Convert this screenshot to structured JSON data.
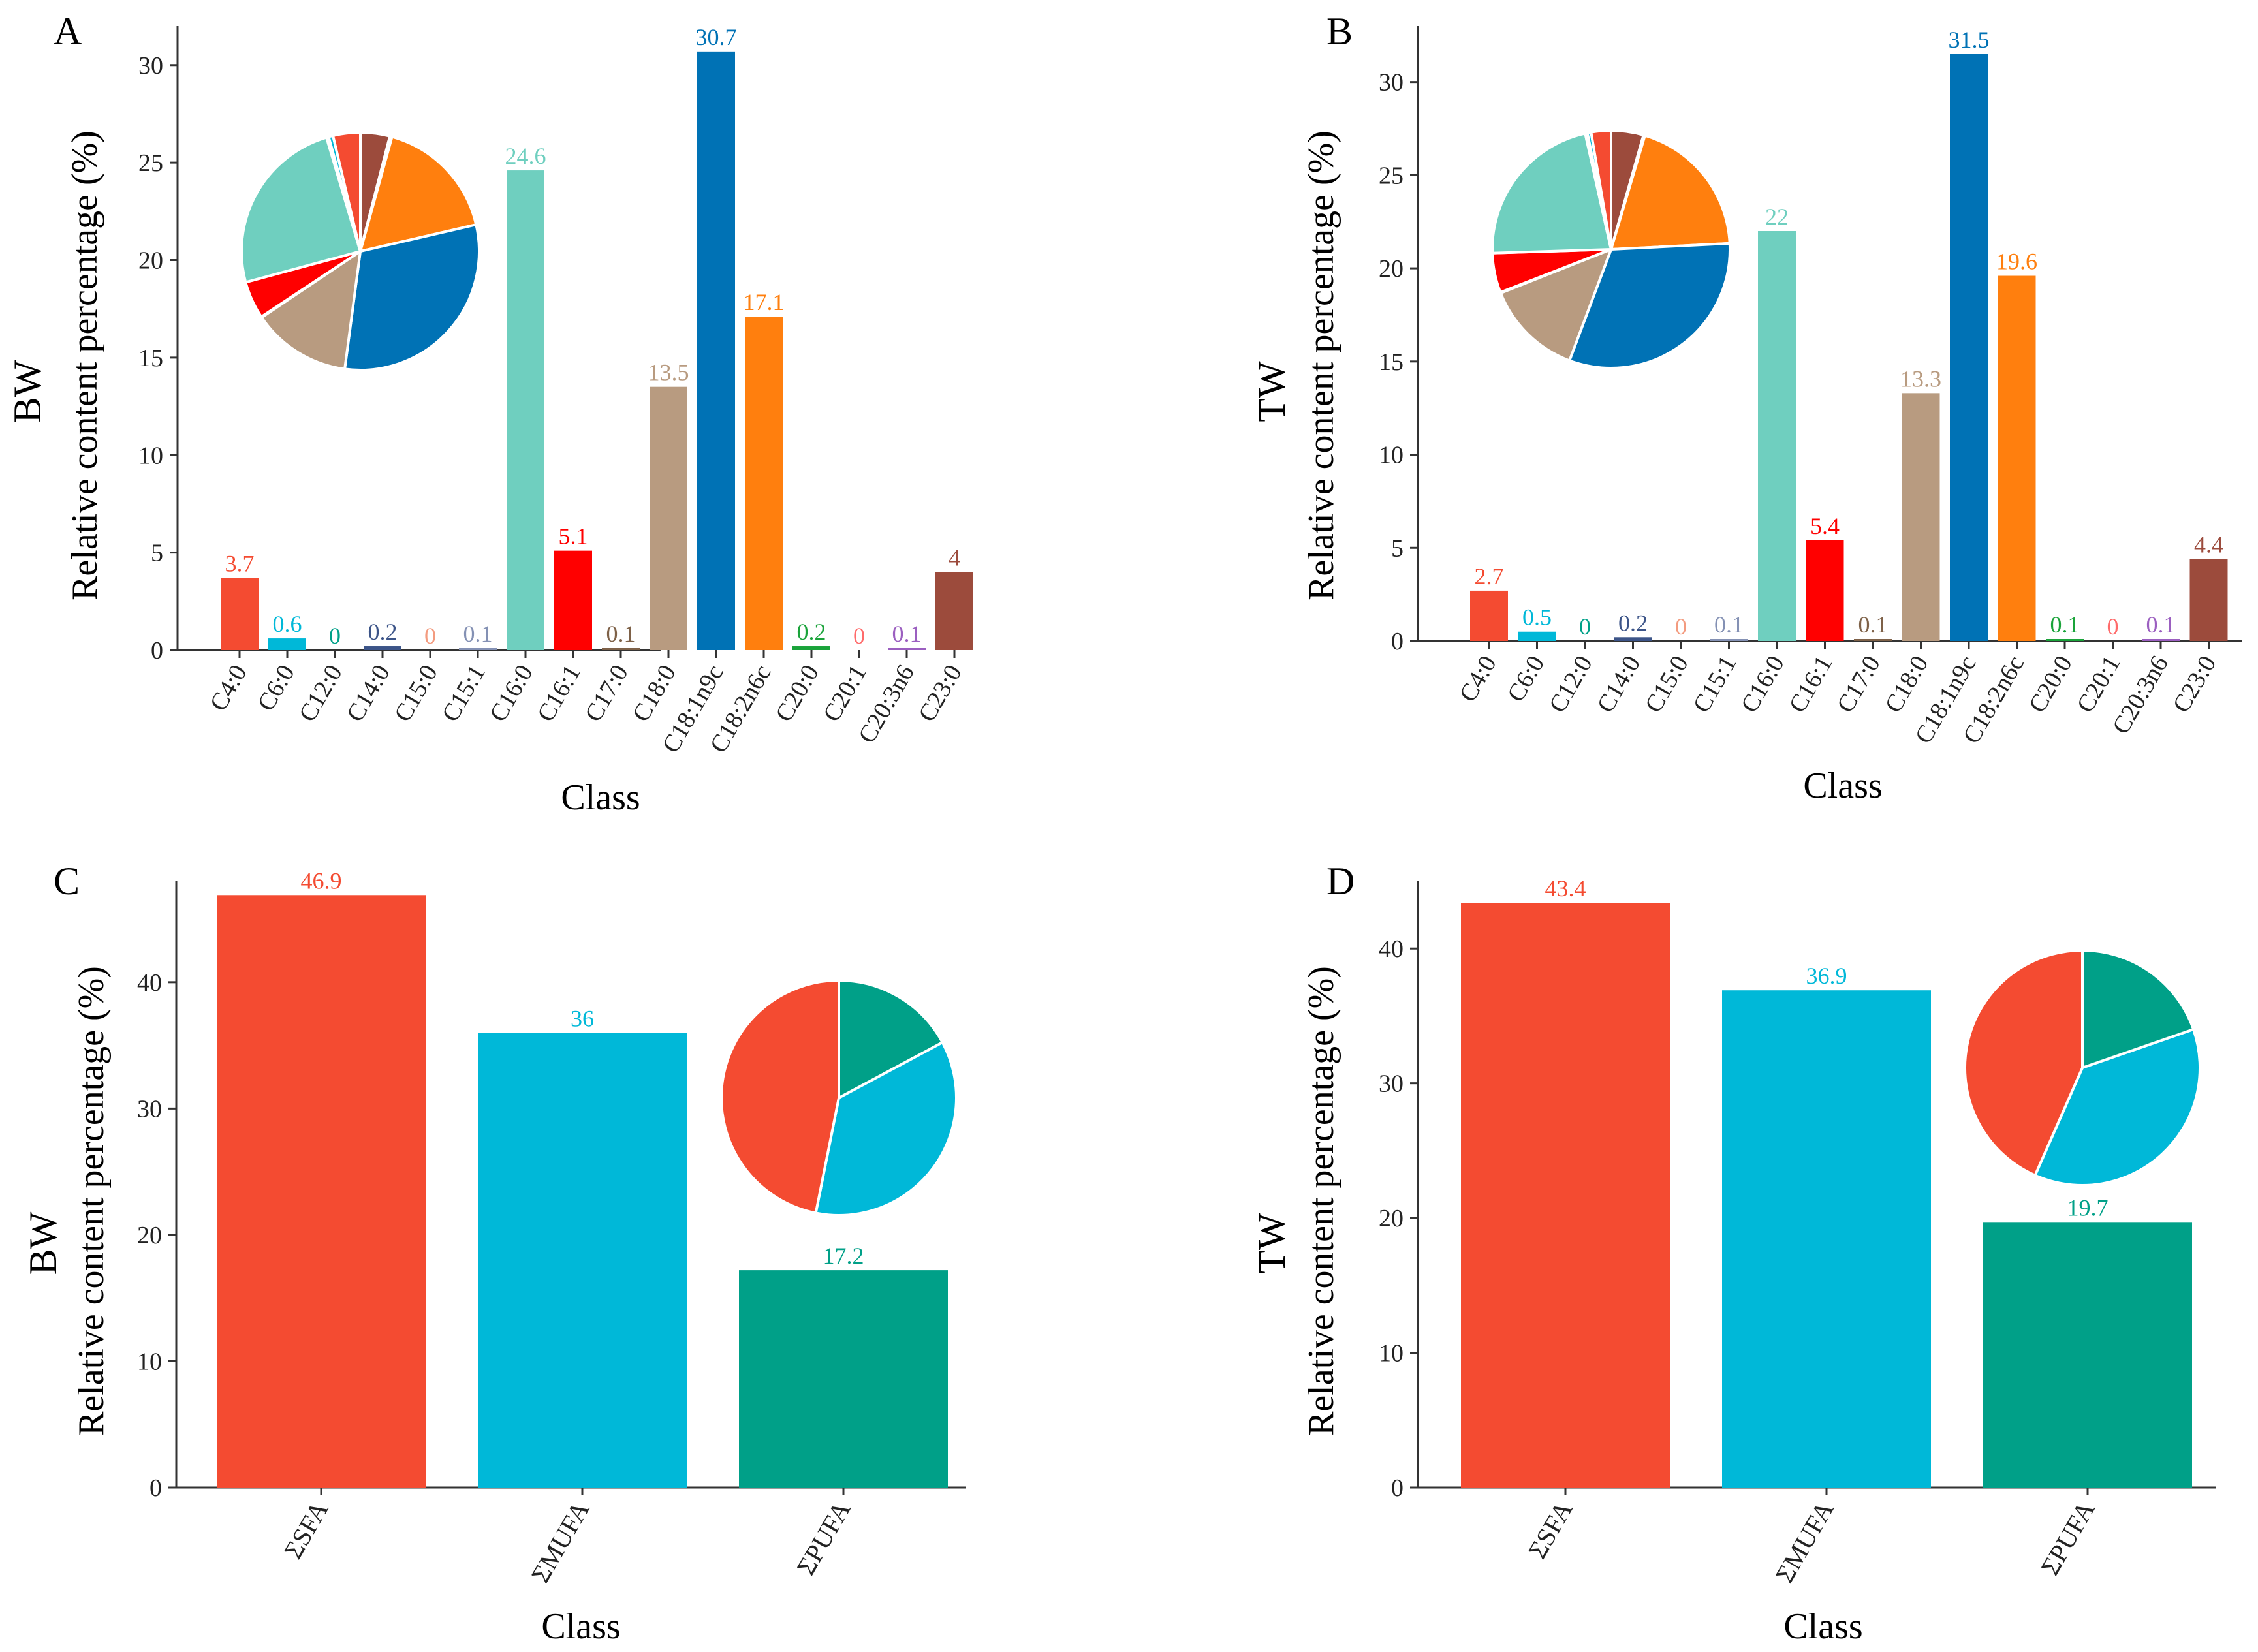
{
  "palette": {
    "C4:0": "#f44b31",
    "C6:0": "#00b8d8",
    "C12:0": "#00a088",
    "C14:0": "#3c5488",
    "C15:0": "#f39b7f",
    "C15:1": "#8491b4",
    "C16:0": "#6fcfbf",
    "C16:1": "#ff0000",
    "C17:0": "#7e6148",
    "C18:0": "#b89b80",
    "C18:1n9c": "#0072b5",
    "C18:2n6c": "#ff7f0e",
    "C20:0": "#1aa33a",
    "C20:1": "#ff6b6b",
    "C20:3n6": "#9b5fc0",
    "C23:0": "#9c4b3c",
    "SFA": "#f44b31",
    "MUFA": "#00b8d8",
    "PUFA": "#00a088"
  },
  "chart_data": [
    {
      "panel": "A",
      "type": "bar",
      "group_label": "BW",
      "ylabel": "Relative content percentage (%)",
      "xlabel": "Class",
      "ylim": [
        0,
        32
      ],
      "yticks": [
        0,
        5,
        10,
        15,
        20,
        25,
        30
      ],
      "categories": [
        "C4:0",
        "C6:0",
        "C12:0",
        "C14:0",
        "C15:0",
        "C15:1",
        "C16:0",
        "C16:1",
        "C17:0",
        "C18:0",
        "C18:1n9c",
        "C18:2n6c",
        "C20:0",
        "C20:1",
        "C20:3n6",
        "C23:0"
      ],
      "values": [
        3.7,
        0.6,
        0,
        0.2,
        0,
        0.1,
        24.6,
        5.1,
        0.1,
        13.5,
        30.7,
        17.1,
        0.2,
        0,
        0.1,
        4
      ],
      "labels": [
        "3.7",
        "0.6",
        "0",
        "0.2",
        "0",
        "0.1",
        "24.6",
        "5.1",
        "0.1",
        "13.5",
        "30.7",
        "17.1",
        "0.2",
        "0",
        "0.1",
        "4"
      ],
      "inset_pie": true
    },
    {
      "panel": "B",
      "type": "bar",
      "group_label": "TW",
      "ylabel": "Relative content percentage (%)",
      "xlabel": "Class",
      "ylim": [
        0,
        33
      ],
      "yticks": [
        0,
        5,
        10,
        15,
        20,
        25,
        30
      ],
      "categories": [
        "C4:0",
        "C6:0",
        "C12:0",
        "C14:0",
        "C15:0",
        "C15:1",
        "C16:0",
        "C16:1",
        "C17:0",
        "C18:0",
        "C18:1n9c",
        "C18:2n6c",
        "C20:0",
        "C20:1",
        "C20:3n6",
        "C23:0"
      ],
      "values": [
        2.7,
        0.5,
        0,
        0.2,
        0,
        0.1,
        22,
        5.4,
        0.1,
        13.3,
        31.5,
        19.6,
        0.1,
        0,
        0.1,
        4.4
      ],
      "labels": [
        "2.7",
        "0.5",
        "0",
        "0.2",
        "0",
        "0.1",
        "22",
        "5.4",
        "0.1",
        "13.3",
        "31.5",
        "19.6",
        "0.1",
        "0",
        "0.1",
        "4.4"
      ],
      "inset_pie": true
    },
    {
      "panel": "C",
      "type": "bar",
      "group_label": "BW",
      "ylabel": "Relative content percentage (%)",
      "xlabel": "Class",
      "ylim": [
        0,
        48
      ],
      "yticks": [
        0,
        10,
        20,
        30,
        40
      ],
      "categories": [
        "ΣSFA",
        "ΣMUFA",
        "ΣPUFA"
      ],
      "keys": [
        "SFA",
        "MUFA",
        "PUFA"
      ],
      "values": [
        46.9,
        36,
        17.2
      ],
      "labels": [
        "46.9",
        "36",
        "17.2"
      ],
      "inset_pie": true
    },
    {
      "panel": "D",
      "type": "bar",
      "group_label": "TW",
      "ylabel": "Relative content percentage (%)",
      "xlabel": "Class",
      "ylim": [
        0,
        45
      ],
      "yticks": [
        0,
        10,
        20,
        30,
        40
      ],
      "categories": [
        "ΣSFA",
        "ΣMUFA",
        "ΣPUFA"
      ],
      "keys": [
        "SFA",
        "MUFA",
        "PUFA"
      ],
      "values": [
        43.4,
        36.9,
        19.7
      ],
      "labels": [
        "43.4",
        "36.9",
        "19.7"
      ],
      "inset_pie": true
    }
  ]
}
